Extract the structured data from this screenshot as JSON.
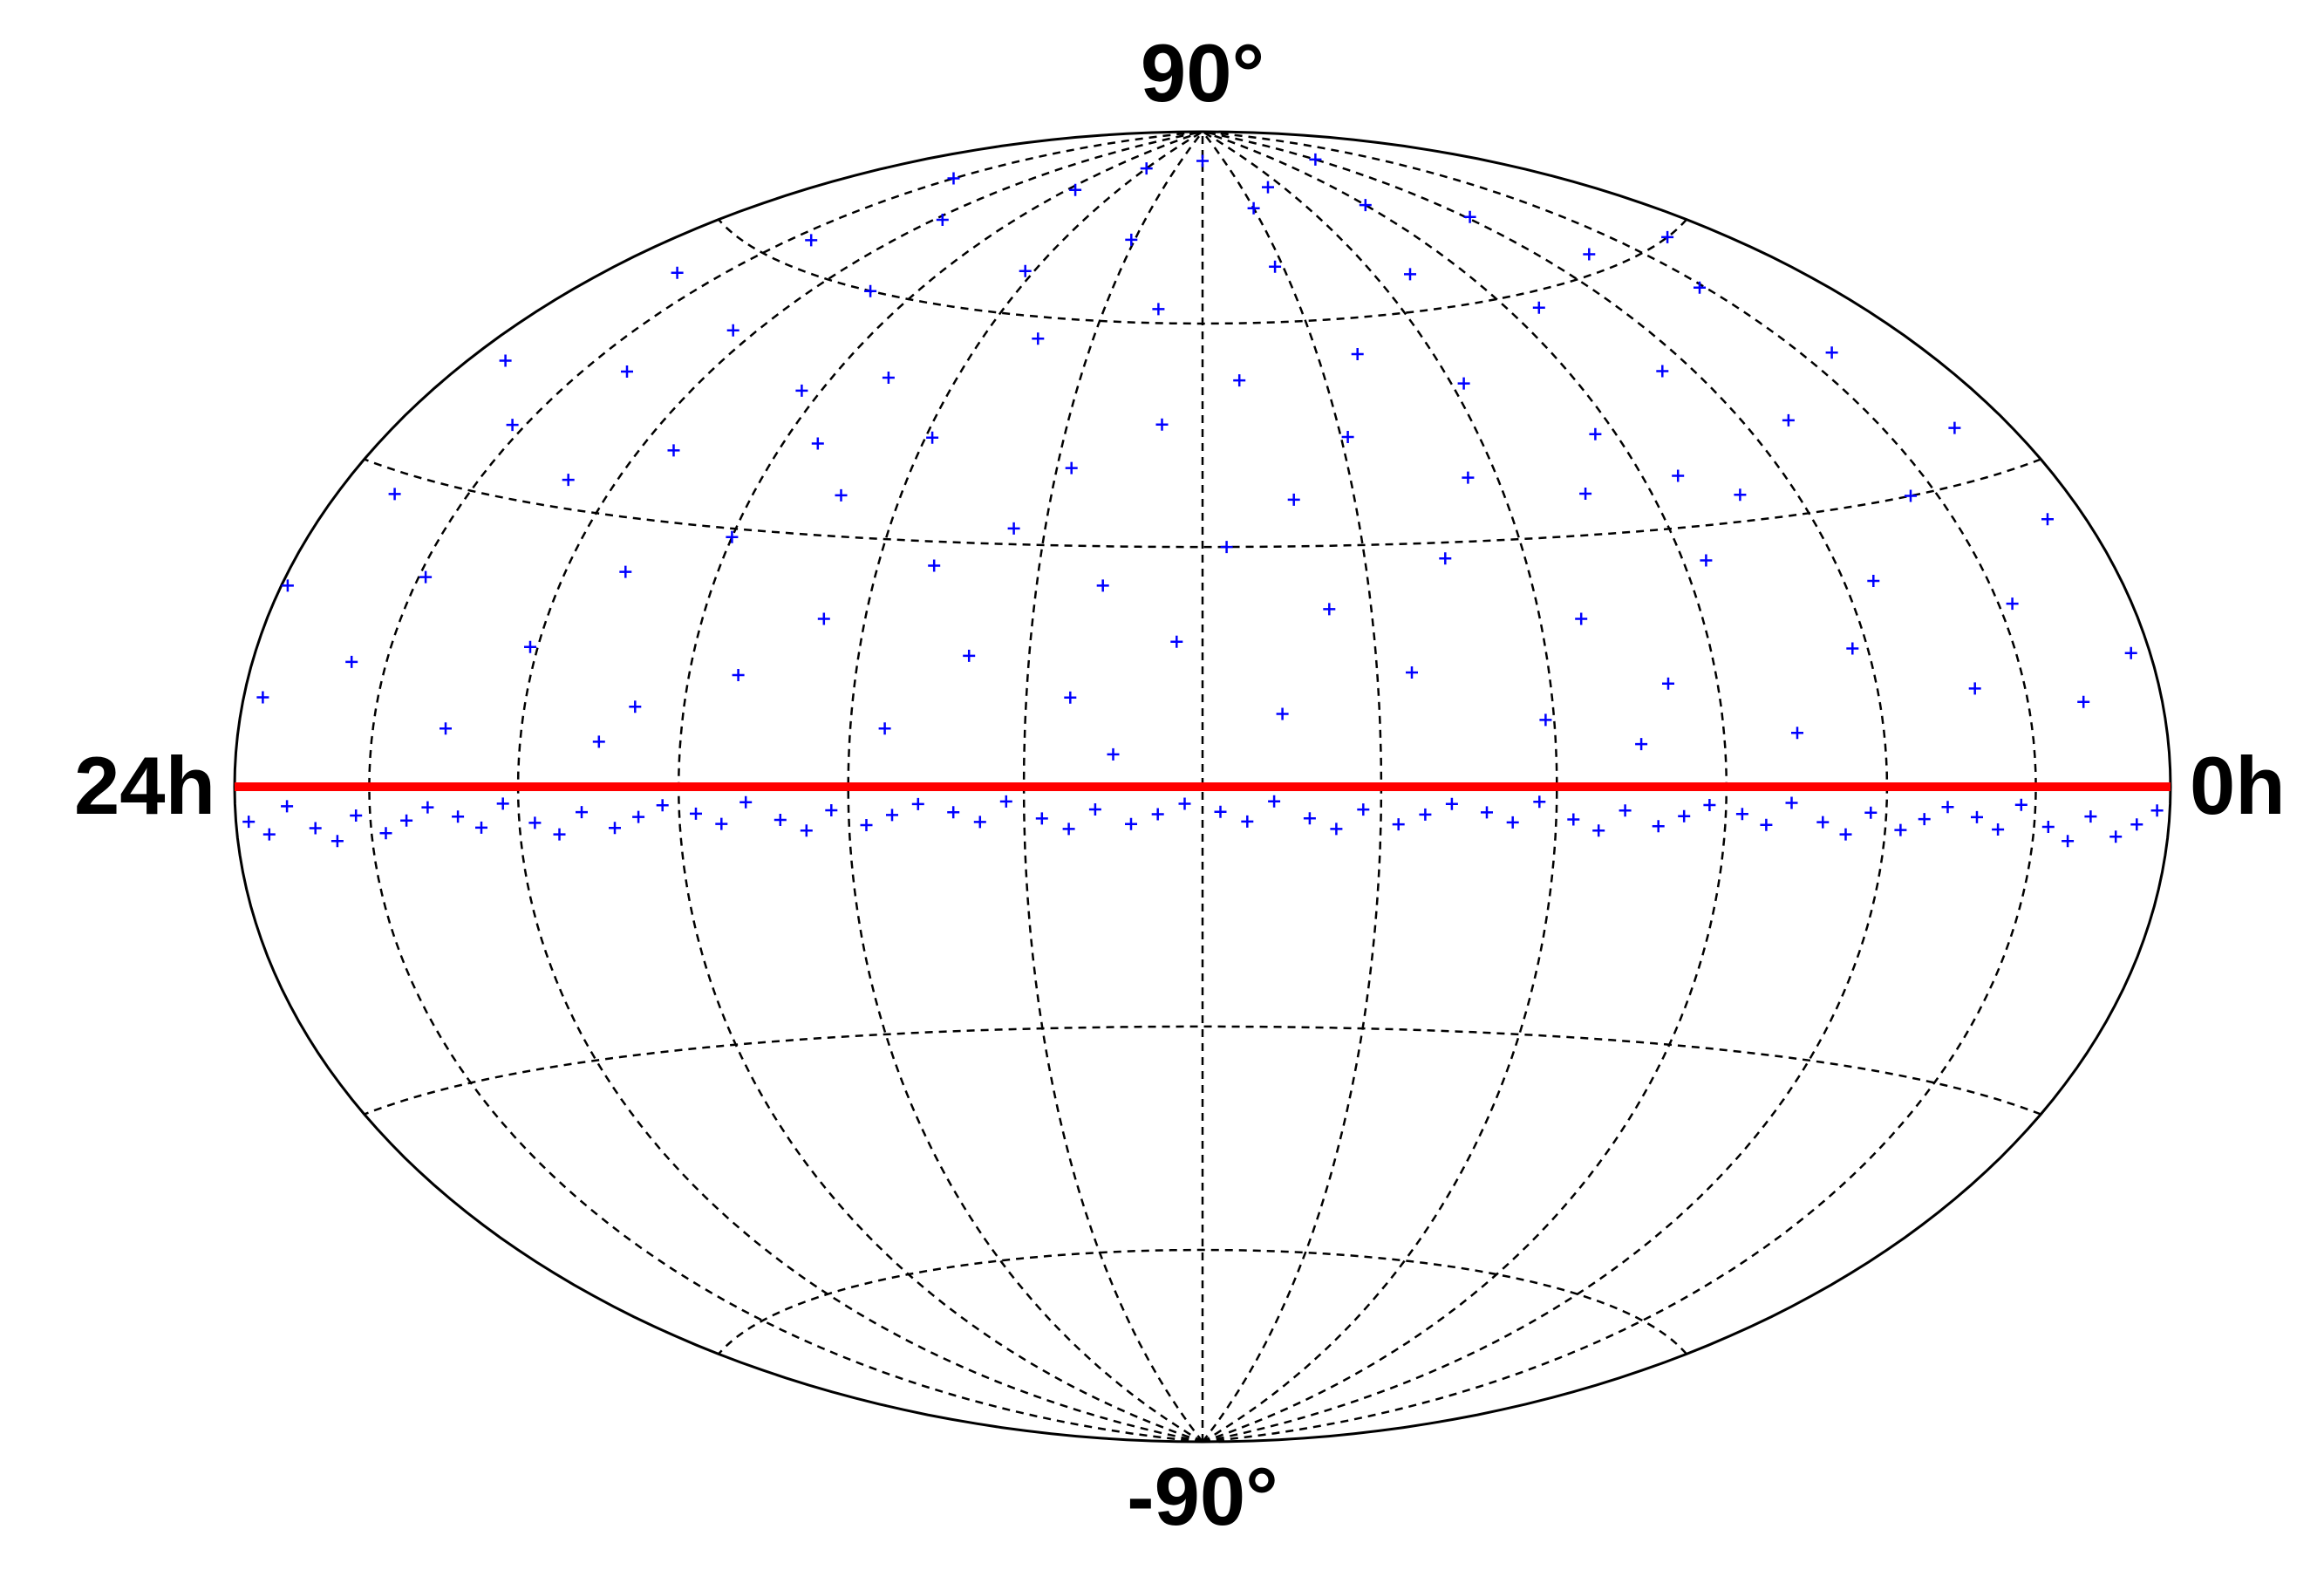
{
  "chart_data": {
    "type": "scatter",
    "projection": "hammer",
    "xlim": [
      0,
      24
    ],
    "ylim": [
      -90,
      90
    ],
    "xticks": [
      {
        "value": 24,
        "label": "24h"
      },
      {
        "value": 0,
        "label": "0h"
      }
    ],
    "yticks": [
      {
        "value": 90,
        "label": "90°"
      },
      {
        "value": -90,
        "label": "-90°"
      }
    ],
    "meridians": [
      2,
      4,
      6,
      8,
      10,
      12,
      14,
      16,
      18,
      20,
      22
    ],
    "parallels": [
      -60,
      -30,
      30,
      60
    ],
    "reference_line": {
      "y": 0,
      "color": "#ff0000"
    },
    "series": [
      {
        "color": "#0000ff",
        "x": [
          0.3,
          0.6,
          0.9,
          1.2,
          1.5,
          1.8,
          2.1,
          2.4,
          2.7,
          3.0,
          3.3,
          3.6,
          3.9,
          4.2,
          4.5,
          4.8,
          5.1,
          5.4,
          5.7,
          6.0,
          6.3,
          6.6,
          6.9,
          7.2,
          7.5,
          7.8,
          8.1,
          8.4,
          8.7,
          9.0,
          9.3,
          9.6,
          9.9,
          10.2,
          10.5,
          10.8,
          11.1,
          11.4,
          11.7,
          12.0,
          12.3,
          12.6,
          12.9,
          13.2,
          13.5,
          13.8,
          14.1,
          14.4,
          14.7,
          15.0,
          15.3,
          15.6,
          15.9,
          16.2,
          16.5,
          16.8,
          17.1,
          17.4,
          17.7,
          18.0,
          18.3,
          18.6,
          18.9,
          19.2,
          19.5,
          19.8,
          20.1,
          20.4,
          20.7,
          21.0,
          21.3,
          21.6,
          21.9,
          22.2,
          22.5,
          22.8,
          23.1,
          23.4,
          23.7,
          23.9,
          1.0,
          4.0,
          7.0,
          10.0,
          13.0,
          16.0,
          19.0,
          22.0,
          5.5,
          17.5,
          0.2,
          0.5,
          0.8,
          1.2,
          1.5,
          1.8,
          2.2,
          2.5,
          2.8,
          3.2,
          3.5,
          3.8,
          4.2,
          4.5,
          4.8,
          5.2,
          5.5,
          5.8,
          6.2,
          6.5,
          6.8,
          7.2,
          7.5,
          7.8,
          8.2,
          8.5,
          8.8,
          9.2,
          9.5,
          9.8,
          10.2,
          10.5,
          10.8,
          11.2,
          11.5,
          11.8,
          12.2,
          12.5,
          12.8,
          13.2,
          13.5,
          13.8,
          14.2,
          14.5,
          14.8,
          15.2,
          15.5,
          15.8,
          16.2,
          16.5,
          16.8,
          17.2,
          17.5,
          17.8,
          18.2,
          18.5,
          18.8,
          19.2,
          19.5,
          19.8,
          20.2,
          20.5,
          20.8,
          21.2,
          21.5,
          21.8,
          22.2,
          22.5,
          22.8,
          23.2,
          23.5,
          23.8
        ],
        "y": [
          12,
          25,
          35,
          8,
          45,
          18,
          55,
          30,
          10,
          62,
          40,
          22,
          70,
          15,
          48,
          33,
          6,
          58,
          26,
          75,
          42,
          12,
          35,
          65,
          20,
          50,
          8,
          38,
          80,
          28,
          55,
          14,
          44,
          68,
          22,
          36,
          9,
          52,
          30,
          85,
          18,
          46,
          62,
          25,
          11,
          40,
          72,
          32,
          16,
          57,
          27,
          7,
          43,
          66,
          20,
          35,
          50,
          13,
          78,
          29,
          47,
          9,
          60,
          24,
          38,
          70,
          15,
          52,
          33,
          6,
          45,
          63,
          21,
          37,
          12,
          55,
          28,
          42,
          8,
          18,
          60,
          82,
          5,
          77,
          4,
          83,
          5,
          74,
          36,
          41,
          -2.1,
          -3.4,
          -4.6,
          -2.8,
          -5.2,
          -3.9,
          -1.8,
          -4.3,
          -3.1,
          -2.1,
          -3.4,
          -4.6,
          -2.8,
          -5.2,
          -3.9,
          -1.8,
          -4.3,
          -3.1,
          -2.1,
          -3.4,
          -4.6,
          -2.8,
          -5.2,
          -3.9,
          -1.8,
          -4.3,
          -3.1,
          -2.1,
          -3.4,
          -4.6,
          -2.8,
          -5.2,
          -3.9,
          -1.8,
          -4.3,
          -3.1,
          -2.1,
          -3.4,
          -4.6,
          -2.8,
          -5.2,
          -3.9,
          -1.8,
          -4.3,
          -3.1,
          -2.1,
          -3.4,
          -4.6,
          -2.8,
          -5.2,
          -3.9,
          -1.8,
          -4.3,
          -3.1,
          -2.1,
          -3.4,
          -4.6,
          -2.8,
          -5.2,
          -3.9,
          -1.8,
          -4.3,
          -3.1,
          -2.1,
          -3.4,
          -4.6,
          -2.8,
          -5.2,
          -3.9,
          -1.8,
          -4.3,
          -3.1
        ]
      }
    ]
  }
}
